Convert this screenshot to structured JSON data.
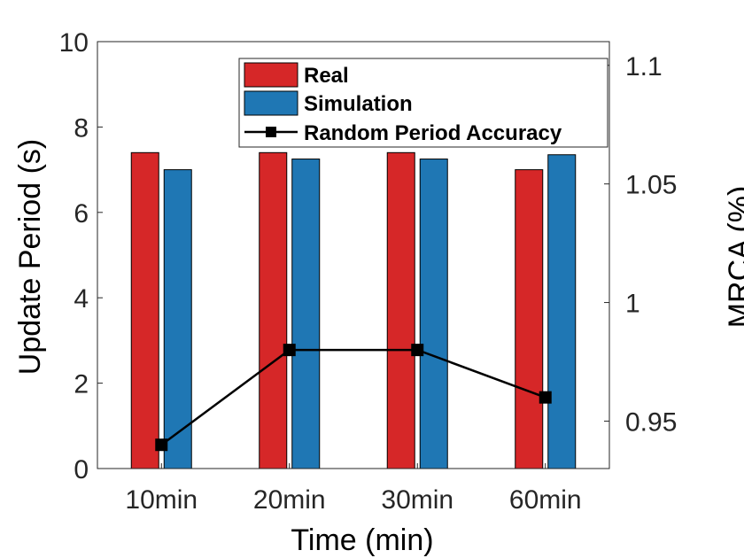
{
  "chart_data": {
    "type": "bar",
    "title": "",
    "xlabel": "Time (min)",
    "ylabel": "Update Period (s)",
    "y2label": "MRCA (%)",
    "categories": [
      "10min",
      "20min",
      "30min",
      "60min"
    ],
    "ylim": [
      0,
      10
    ],
    "yticks": [
      0,
      2,
      4,
      6,
      8,
      10
    ],
    "y2lim": [
      0.93,
      1.11
    ],
    "y2ticks": [
      0.95,
      1,
      1.05,
      1.1
    ],
    "y2tick_labels": [
      "0.95",
      "1",
      "1.05",
      "1.1"
    ],
    "series": [
      {
        "name": "Real",
        "kind": "bar",
        "axis": "left",
        "color": "#D62728",
        "values": [
          7.4,
          7.4,
          7.4,
          7.0
        ]
      },
      {
        "name": "Simulation",
        "kind": "bar",
        "axis": "left",
        "color": "#1F77B4",
        "values": [
          7.0,
          7.25,
          7.25,
          7.35
        ]
      },
      {
        "name": "Random Period Accuracy",
        "kind": "line",
        "axis": "right",
        "color": "#000000",
        "values": [
          0.94,
          0.98,
          0.98,
          0.96
        ]
      }
    ],
    "legend_position": "top-right",
    "grid": false
  }
}
